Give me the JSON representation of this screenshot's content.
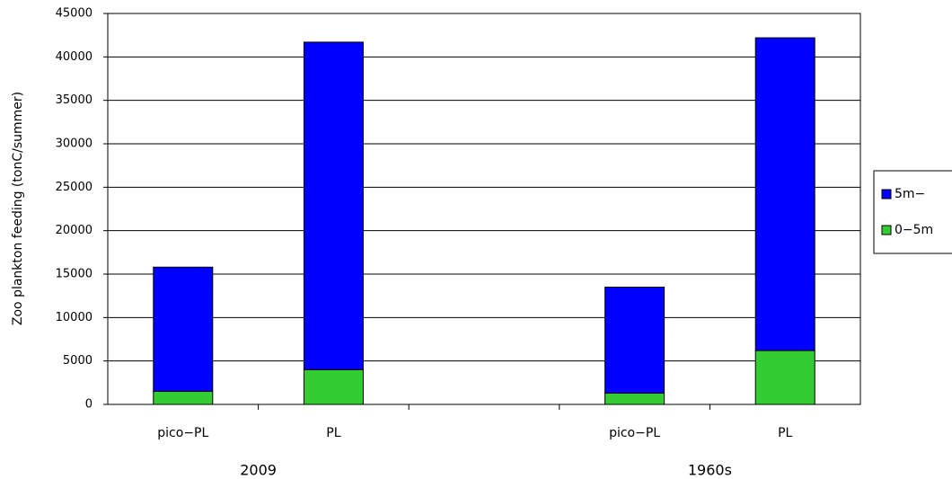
{
  "chart_data": {
    "type": "stacked_bar",
    "y_label": "Zoo plankton feeding (tonC/summer)",
    "categories": [
      "pico−PL",
      "PL",
      null,
      "pico−PL",
      "PL"
    ],
    "groups": [
      "2009",
      "1960s"
    ],
    "series": [
      {
        "name": "0−5m",
        "color": "#33cc33",
        "values": [
          1500,
          4000,
          null,
          1300,
          6200
        ]
      },
      {
        "name": "5m−",
        "color": "#0000ff",
        "values": [
          14300,
          37700,
          null,
          12200,
          36000
        ]
      }
    ],
    "ylim": [
      0,
      45000
    ],
    "yticks": [
      0,
      5000,
      10000,
      15000,
      20000,
      25000,
      30000,
      35000,
      40000,
      45000
    ],
    "grid": true,
    "legend": "right"
  }
}
